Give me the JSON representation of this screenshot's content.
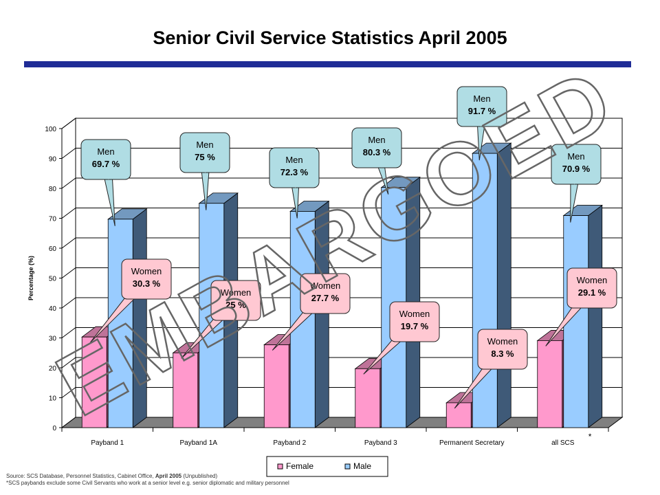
{
  "title": "Senior Civil Service Statistics April 2005",
  "colors": {
    "title_rule": "#1f2c96",
    "female": "#ff99cc",
    "male": "#99ccff",
    "callout_women": "#ffc8d2",
    "callout_men": "#b0dde4",
    "watermark_stroke": "#666666"
  },
  "chart_data": {
    "type": "bar",
    "three_d": true,
    "title": "Senior Civil Service Statistics April 2005",
    "xlabel": "",
    "ylabel": "Percentage (%)",
    "ylim": [
      0,
      100
    ],
    "yticks": [
      0,
      10,
      20,
      30,
      40,
      50,
      60,
      70,
      80,
      90,
      100
    ],
    "grid": true,
    "legend_position": "bottom",
    "categories": [
      "Payband 1",
      "Payband 1A",
      "Payband 2",
      "Payband 3",
      "Permanent Secretary",
      "all SCS"
    ],
    "category_note": {
      "index": 5,
      "mark": "*"
    },
    "series": [
      {
        "name": "Female",
        "values": [
          30.3,
          25,
          27.7,
          19.7,
          8.3,
          29.1
        ]
      },
      {
        "name": "Male",
        "values": [
          69.7,
          75,
          72.3,
          80.3,
          91.7,
          70.9
        ]
      }
    ],
    "callouts": {
      "women_label": "Women",
      "men_label": "Men",
      "women_values": [
        "30.3 %",
        "25 %",
        "27.7 %",
        "19.7 %",
        "8.3 %",
        "29.1 %"
      ],
      "men_values": [
        "69.7 %",
        "75 %",
        "72.3 %",
        "80.3 %",
        "91.7 %",
        "70.9 %"
      ]
    },
    "watermark": "EMBARGOED"
  },
  "source": {
    "line1_prefix": "Source: SCS Database, Personnel Statistics, Cabinet Office, ",
    "line1_bold": "April 2005",
    "line1_suffix": " (Unpublished)",
    "line2": "*SCS paybands exclude some Civil Servants who work at a senior level e.g. senior diplomatic and military personnel"
  }
}
